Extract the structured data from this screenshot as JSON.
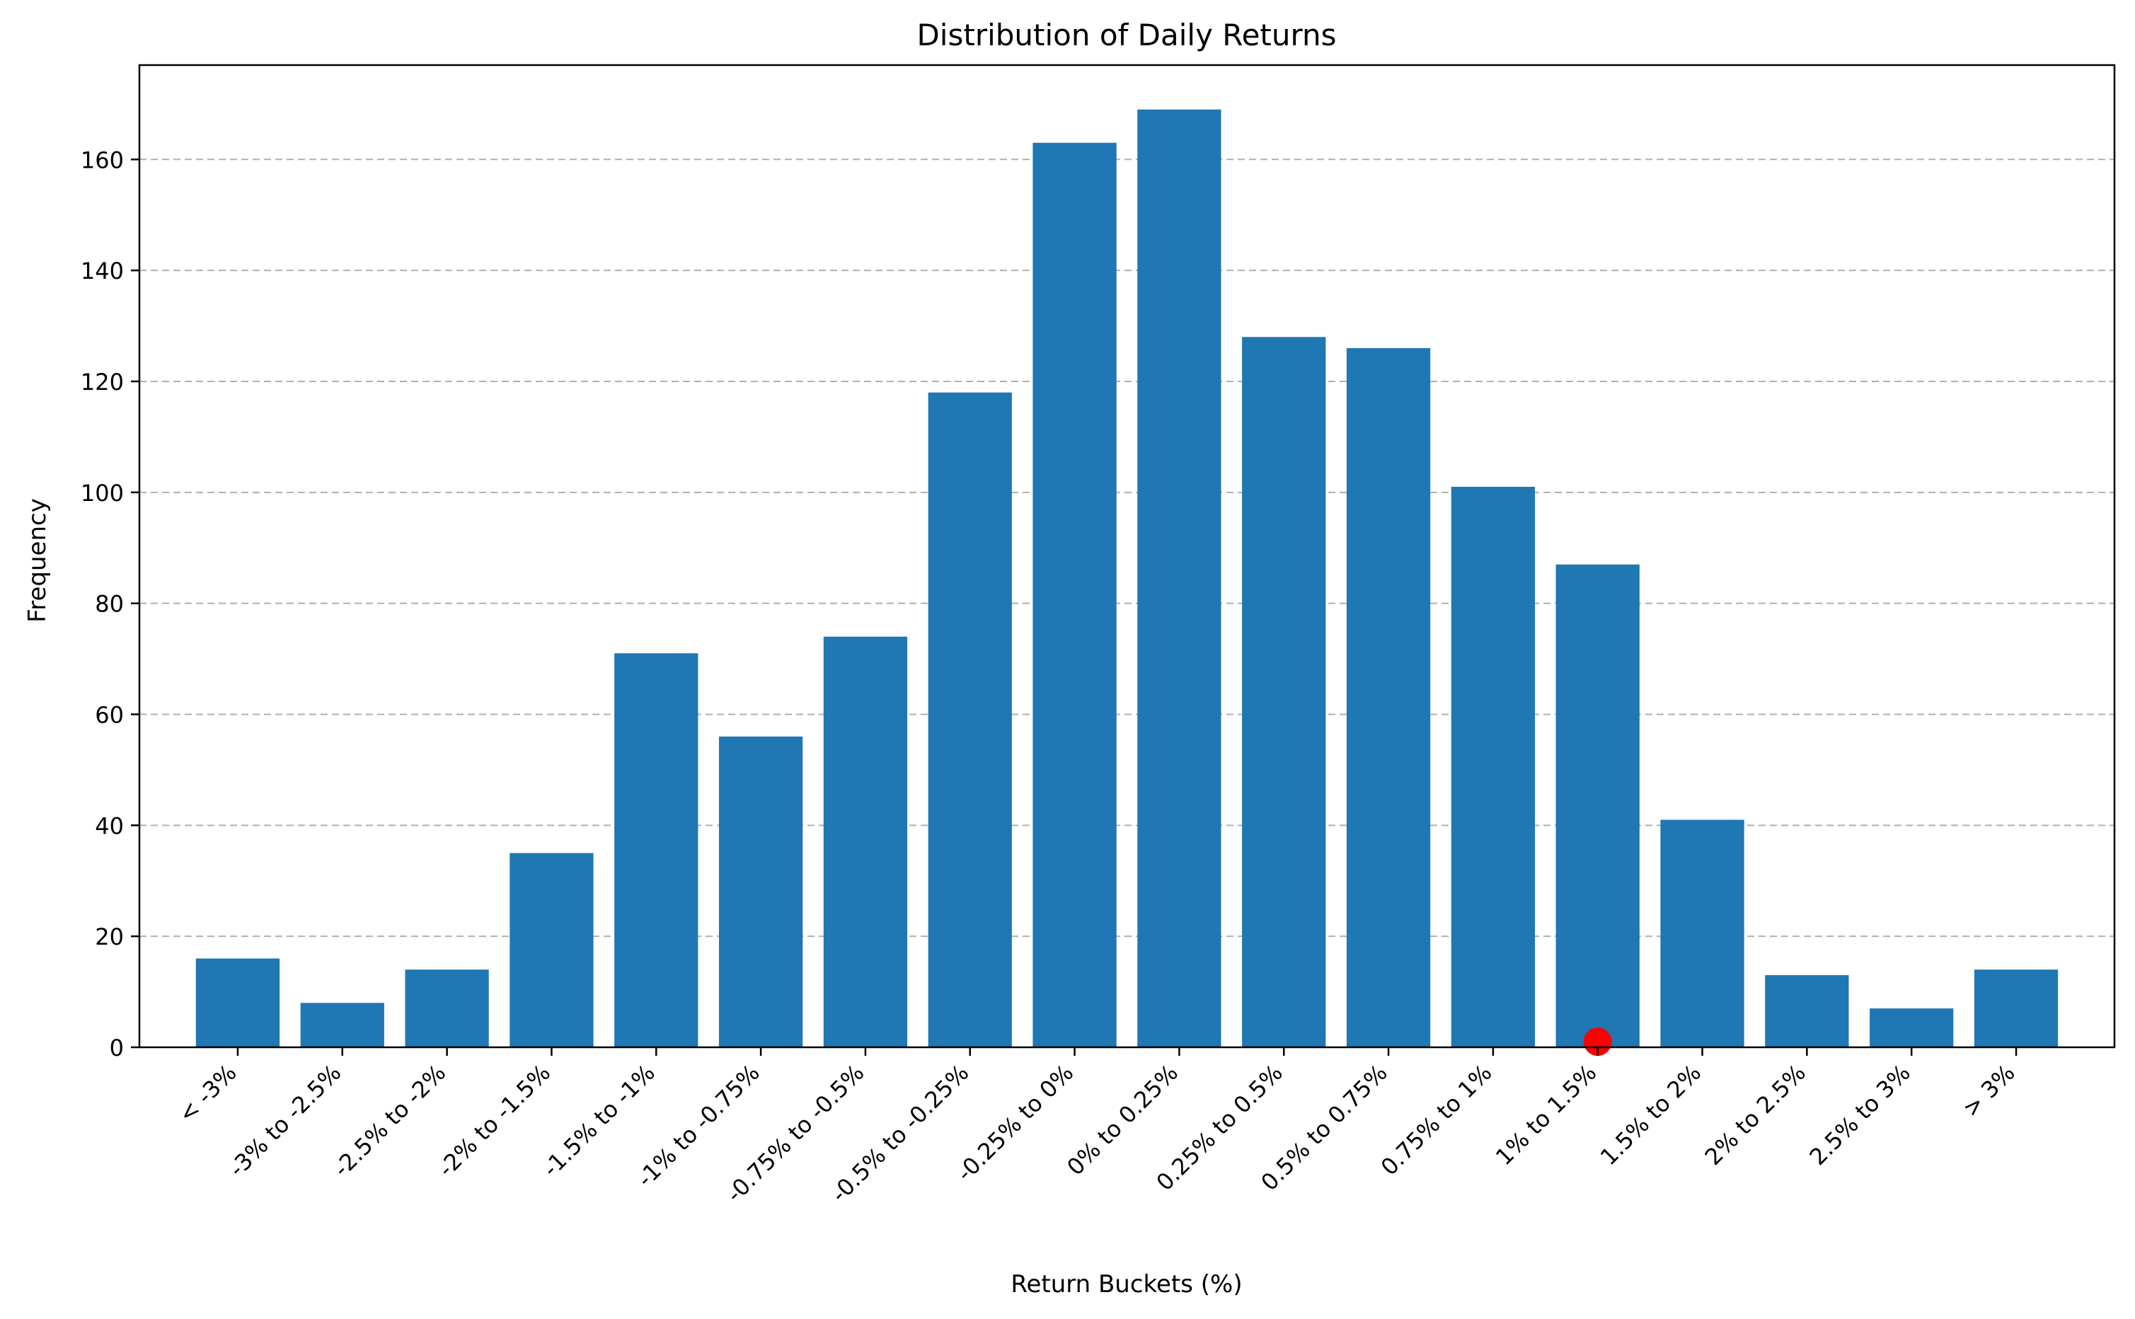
{
  "chart_data": {
    "type": "bar",
    "title": "Distribution of Daily Returns",
    "xlabel": "Return Buckets (%)",
    "ylabel": "Frequency",
    "categories": [
      "< -3%",
      "-3% to -2.5%",
      "-2.5% to -2%",
      "-2% to -1.5%",
      "-1.5% to -1%",
      "-1% to -0.75%",
      "-0.75% to -0.5%",
      "-0.5% to -0.25%",
      "-0.25% to 0%",
      "0% to 0.25%",
      "0.25% to 0.5%",
      "0.5% to 0.75%",
      "0.75% to 1%",
      "1% to 1.5%",
      "1.5% to 2%",
      "2% to 2.5%",
      "2.5% to 3%",
      "> 3%"
    ],
    "values": [
      16,
      8,
      14,
      35,
      71,
      56,
      74,
      118,
      163,
      169,
      128,
      126,
      101,
      87,
      41,
      13,
      7,
      14
    ],
    "ylim": [
      0,
      177
    ],
    "yticks": [
      0,
      20,
      40,
      60,
      80,
      100,
      120,
      140,
      160
    ],
    "grid": {
      "y": true,
      "x": false,
      "style": "dashed"
    },
    "marker": {
      "category": "1% to 1.5%",
      "y": 1,
      "color": "#ff0000"
    },
    "colors": {
      "bar": "#1f77b4",
      "grid": "#b0b0b0",
      "marker": "#ff0000"
    }
  }
}
